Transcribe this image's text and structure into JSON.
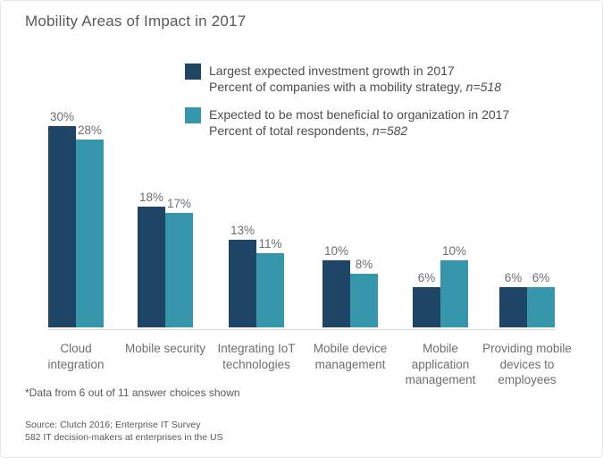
{
  "title": "Mobility Areas of Impact in 2017",
  "chart_data": {
    "type": "bar",
    "title": "Mobility Areas of Impact in 2017",
    "categories": [
      "Cloud integration",
      "Mobile security",
      "Integrating IoT technologies",
      "Mobile device management",
      "Mobile application management",
      "Providing mobile devices to employees"
    ],
    "category_label_lines": [
      [
        "Cloud",
        "integration"
      ],
      [
        "Mobile security"
      ],
      [
        "Integrating IoT",
        "technologies"
      ],
      [
        "Mobile device",
        "management"
      ],
      [
        "Mobile",
        "application",
        "management"
      ],
      [
        "Providing mobile",
        "devices to",
        "employees"
      ]
    ],
    "series": [
      {
        "key": "investment-growth",
        "name": "Largest expected investment growth in 2017",
        "sub_prefix": "Percent of companies with a mobility strategy, ",
        "sub_n": "n=518",
        "color": "#1E4466",
        "values": [
          30,
          18,
          13,
          10,
          6,
          6
        ]
      },
      {
        "key": "most-beneficial",
        "name": "Expected to be most beneficial to organization in 2017",
        "sub_prefix": "Percent of total respondents, ",
        "sub_n": "n=582",
        "color": "#3697AC",
        "values": [
          28,
          17,
          11,
          8,
          10,
          6
        ]
      }
    ],
    "value_suffix": "%",
    "xlabel": "",
    "ylabel": "",
    "ylim": [
      0,
      32
    ],
    "grid": false,
    "axis_line_color": "#d8d9da",
    "legend_position": "top-center"
  },
  "notes": {
    "footnote": "*Data from 6 out of 11 answer choices shown",
    "source_line1": "Source: Clutch 2016; Enterprise IT Survey",
    "source_line2": "582 IT decision-makers at enterprises in the US"
  }
}
